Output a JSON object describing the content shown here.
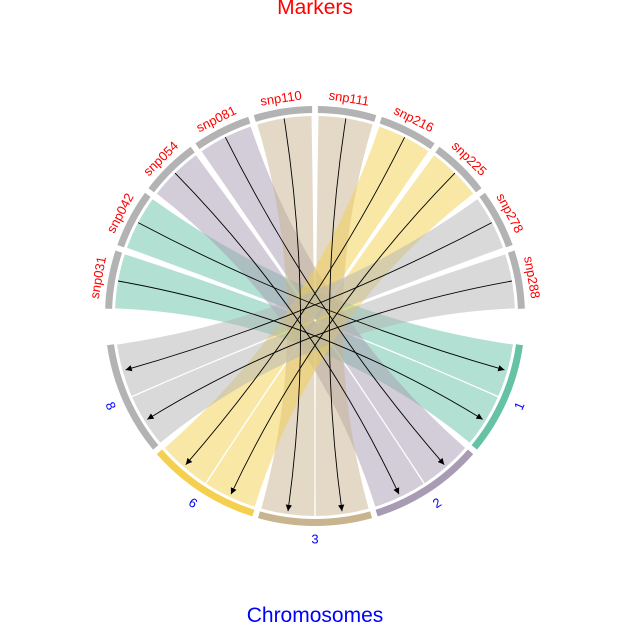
{
  "chart_data": {
    "type": "chord",
    "title_top": "Markers",
    "title_bottom": "Chromosomes",
    "markers": [
      "snp031",
      "snp042",
      "snp054",
      "snp081",
      "snp110",
      "snp111",
      "snp216",
      "snp225",
      "snp278",
      "snp288"
    ],
    "chromosomes": [
      "1",
      "2",
      "3",
      "6",
      "8"
    ],
    "links": [
      {
        "from": "snp031",
        "to": "1"
      },
      {
        "from": "snp042",
        "to": "1"
      },
      {
        "from": "snp054",
        "to": "2"
      },
      {
        "from": "snp081",
        "to": "2"
      },
      {
        "from": "snp110",
        "to": "3"
      },
      {
        "from": "snp111",
        "to": "3"
      },
      {
        "from": "snp216",
        "to": "6"
      },
      {
        "from": "snp225",
        "to": "6"
      },
      {
        "from": "snp278",
        "to": "8"
      },
      {
        "from": "snp288",
        "to": "8"
      }
    ],
    "colors": {
      "marker_sector": "#b3b3b3",
      "marker_label": "#ff0000",
      "chromosome_label": "#0000ff",
      "chromosome_sector": {
        "1": "#66c2a5",
        "2": "#a89bb4",
        "3": "#c8b48e",
        "6": "#f4d04e",
        "8": "#b3b3b3"
      },
      "ribbon": {
        "1": "#66c2a5",
        "2": "#a89bb4",
        "3": "#c8b48e",
        "6": "#f4d04e",
        "8": "#b3b3b3"
      }
    }
  }
}
